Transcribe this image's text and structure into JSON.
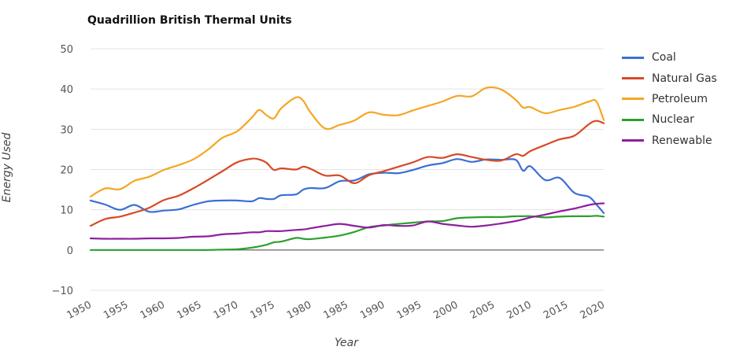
{
  "chart_data": {
    "type": "line",
    "title": "Quadrillion British Thermal Units",
    "xlabel": "Year",
    "ylabel": "Energy Used",
    "xlim": [
      1950,
      2020
    ],
    "ylim": [
      -10,
      50
    ],
    "yticks": [
      -10,
      0,
      10,
      20,
      30,
      40,
      50
    ],
    "xticks": [
      1950,
      1955,
      1960,
      1965,
      1970,
      1975,
      1980,
      1985,
      1990,
      1995,
      2000,
      2005,
      2010,
      2015,
      2020
    ],
    "grid": true,
    "legend_position": "right",
    "x": [
      1950,
      1952,
      1954,
      1956,
      1958,
      1960,
      1962,
      1964,
      1966,
      1968,
      1970,
      1972,
      1973,
      1974,
      1975,
      1976,
      1978,
      1979,
      1980,
      1982,
      1984,
      1986,
      1988,
      1990,
      1992,
      1994,
      1996,
      1998,
      2000,
      2002,
      2004,
      2006,
      2008,
      2009,
      2010,
      2012,
      2014,
      2016,
      2018,
      2019,
      2020
    ],
    "series": [
      {
        "name": "Coal",
        "color": "#3a6fd4",
        "values": [
          12.3,
          11.3,
          10.0,
          11.2,
          9.5,
          9.8,
          10.1,
          11.2,
          12.1,
          12.3,
          12.3,
          12.1,
          12.9,
          12.7,
          12.7,
          13.6,
          13.8,
          15.0,
          15.4,
          15.4,
          17.1,
          17.3,
          18.8,
          19.2,
          19.1,
          19.9,
          21.0,
          21.6,
          22.6,
          21.9,
          22.5,
          22.4,
          22.4,
          19.7,
          20.8,
          17.4,
          17.9,
          14.2,
          13.2,
          11.3,
          9.2
        ]
      },
      {
        "name": "Natural Gas",
        "color": "#d84a26",
        "values": [
          6.0,
          7.7,
          8.3,
          9.3,
          10.5,
          12.4,
          13.5,
          15.3,
          17.4,
          19.6,
          21.8,
          22.7,
          22.5,
          21.7,
          19.9,
          20.3,
          20.0,
          20.7,
          20.2,
          18.5,
          18.5,
          16.6,
          18.6,
          19.6,
          20.7,
          21.8,
          23.1,
          22.9,
          23.8,
          23.1,
          22.4,
          22.2,
          23.8,
          23.4,
          24.6,
          26.1,
          27.5,
          28.4,
          31.3,
          32.1,
          31.5
        ]
      },
      {
        "name": "Petroleum",
        "color": "#f5a623",
        "values": [
          13.3,
          15.3,
          15.1,
          17.2,
          18.2,
          19.9,
          21.1,
          22.5,
          24.9,
          27.9,
          29.5,
          32.9,
          34.8,
          33.5,
          32.7,
          35.2,
          37.9,
          37.1,
          34.2,
          30.2,
          31.1,
          32.2,
          34.2,
          33.6,
          33.5,
          34.7,
          35.8,
          36.9,
          38.3,
          38.2,
          40.3,
          39.9,
          37.3,
          35.4,
          35.5,
          34.0,
          34.8,
          35.6,
          36.9,
          36.9,
          32.3
        ]
      },
      {
        "name": "Nuclear",
        "color": "#2ca02c",
        "values": [
          0.0,
          0.0,
          0.0,
          0.0,
          0.0,
          0.0,
          0.0,
          0.0,
          0.0,
          0.1,
          0.2,
          0.6,
          0.9,
          1.3,
          1.9,
          2.1,
          3.0,
          2.8,
          2.7,
          3.1,
          3.6,
          4.5,
          5.7,
          6.1,
          6.5,
          6.8,
          7.1,
          7.2,
          7.9,
          8.1,
          8.2,
          8.2,
          8.4,
          8.4,
          8.4,
          8.1,
          8.3,
          8.4,
          8.4,
          8.5,
          8.3
        ]
      },
      {
        "name": "Renewable",
        "color": "#8e1f9e",
        "values": [
          2.9,
          2.8,
          2.8,
          2.8,
          2.9,
          2.9,
          3.0,
          3.3,
          3.4,
          3.9,
          4.1,
          4.4,
          4.4,
          4.7,
          4.7,
          4.7,
          5.0,
          5.1,
          5.4,
          6.0,
          6.5,
          6.0,
          5.6,
          6.2,
          6.0,
          6.1,
          7.1,
          6.5,
          6.1,
          5.8,
          6.1,
          6.6,
          7.2,
          7.6,
          8.1,
          8.8,
          9.6,
          10.3,
          11.2,
          11.5,
          11.6
        ]
      }
    ]
  }
}
